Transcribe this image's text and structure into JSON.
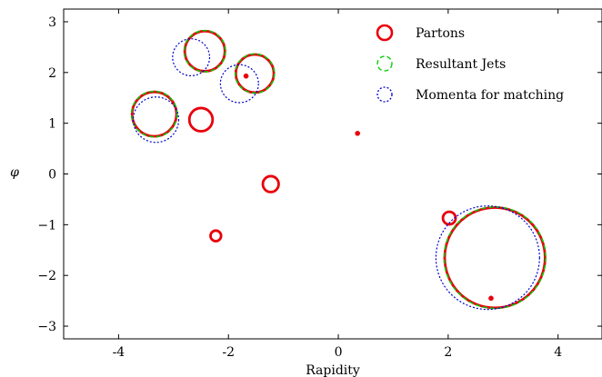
{
  "chart_data": {
    "type": "scatter",
    "xlabel": "Rapidity",
    "ylabel": "φ",
    "xlim": [
      -5,
      4.8
    ],
    "ylim": [
      -3.25,
      3.25
    ],
    "xticks": [
      -4,
      -2,
      0,
      2,
      4
    ],
    "yticks": [
      -3,
      -2,
      -1,
      0,
      1,
      2,
      3
    ],
    "xtick_labels": [
      "-4",
      "-2",
      "0",
      "2",
      "4"
    ],
    "ytick_labels": [
      "−3",
      "−2",
      "−1",
      "0",
      "1",
      "2",
      "3"
    ],
    "legend_position": "top-right",
    "series": [
      {
        "name": "Partons",
        "color": "#e8000b",
        "style": "solid",
        "points": [
          {
            "x": -2.5,
            "y": 1.07,
            "r": 0.22
          },
          {
            "x": -1.23,
            "y": -0.2,
            "r": 0.15
          },
          {
            "x": -2.23,
            "y": -1.22,
            "r": 0.1
          },
          {
            "x": 2.02,
            "y": -0.87,
            "r": 0.12
          },
          {
            "x": 0.35,
            "y": 0.8,
            "r": 0.04
          },
          {
            "x": 2.78,
            "y": -2.45,
            "r": 0.05
          },
          {
            "x": -1.68,
            "y": 1.93,
            "r": 0.03
          },
          {
            "x": -2.43,
            "y": 2.42,
            "r": 0.38
          },
          {
            "x": -1.52,
            "y": 1.98,
            "r": 0.36
          },
          {
            "x": -3.35,
            "y": 1.18,
            "r": 0.42
          },
          {
            "x": 2.85,
            "y": -1.65,
            "r": 0.95
          }
        ]
      },
      {
        "name": "Resultant Jets",
        "color": "#00cc00",
        "style": "dashed",
        "points": [
          {
            "x": -2.43,
            "y": 2.42,
            "r": 0.39
          },
          {
            "x": -1.52,
            "y": 1.98,
            "r": 0.37
          },
          {
            "x": -3.35,
            "y": 1.18,
            "r": 0.43
          },
          {
            "x": 2.85,
            "y": -1.65,
            "r": 0.96
          }
        ]
      },
      {
        "name": "Momenta for matching",
        "color": "#0000cc",
        "style": "dotted",
        "points": [
          {
            "x": -2.68,
            "y": 2.3,
            "r": 0.35
          },
          {
            "x": -1.8,
            "y": 1.78,
            "r": 0.36
          },
          {
            "x": -3.32,
            "y": 1.07,
            "r": 0.43
          },
          {
            "x": 2.72,
            "y": -1.65,
            "r": 0.98
          }
        ]
      }
    ]
  }
}
